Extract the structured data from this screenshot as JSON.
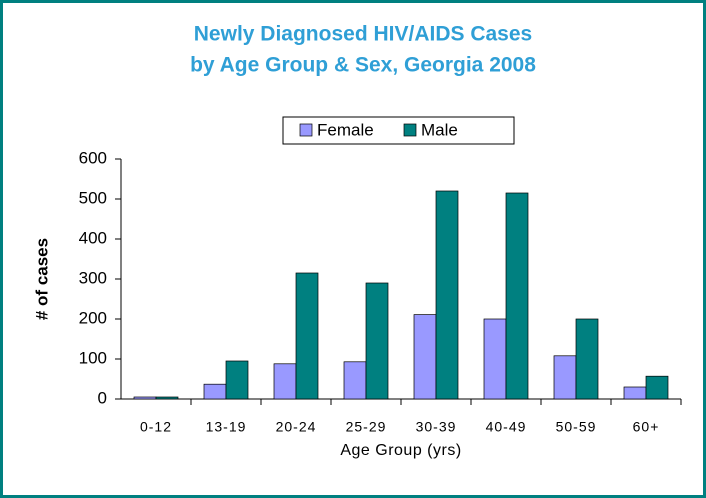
{
  "chart_data": {
    "type": "bar",
    "title": [
      "Newly Diagnosed HIV/AIDS Cases",
      "by Age Group & Sex, Georgia 2008"
    ],
    "categories": [
      "0-12",
      "13-19",
      "20-24",
      "25-29",
      "30-39",
      "40-49",
      "50-59",
      "60+"
    ],
    "series": [
      {
        "name": "Female",
        "color": "#9999ff",
        "values": [
          5,
          37,
          88,
          93,
          211,
          200,
          108,
          30
        ]
      },
      {
        "name": "Male",
        "color": "#008080",
        "values": [
          5,
          95,
          315,
          290,
          520,
          515,
          200,
          57
        ]
      }
    ],
    "x_label": "Age Group (yrs)",
    "y_label": "# of cases",
    "ylim": [
      0,
      600
    ],
    "yticks": [
      0,
      100,
      200,
      300,
      400,
      500,
      600
    ],
    "legend": "top"
  }
}
